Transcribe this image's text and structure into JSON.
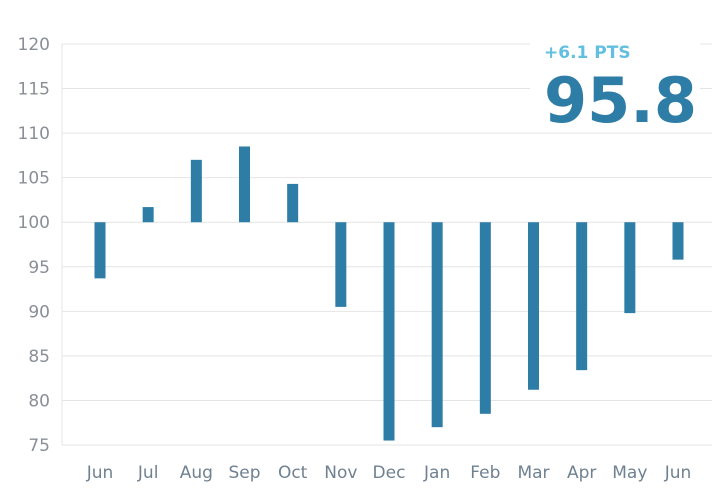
{
  "chart_data": {
    "type": "bar",
    "baseline": 100,
    "categories": [
      "Jun",
      "Jul",
      "Aug",
      "Sep",
      "Oct",
      "Nov",
      "Dec",
      "Jan",
      "Feb",
      "Mar",
      "Apr",
      "May",
      "Jun"
    ],
    "values": [
      93.7,
      101.7,
      107.0,
      108.5,
      104.3,
      90.5,
      75.5,
      77.0,
      78.5,
      81.2,
      83.4,
      89.8,
      95.8
    ],
    "ylim": [
      75,
      120
    ],
    "yticks": [
      75,
      80,
      85,
      90,
      95,
      100,
      105,
      110,
      115,
      120
    ],
    "grid": true,
    "title": "",
    "xlabel": "",
    "ylabel": "",
    "callout": {
      "change": "+6.1 PTS",
      "value": "95.8"
    },
    "colors": {
      "bar": "#2e7da6",
      "grid": "#e4e4e4",
      "change": "#62bfe0",
      "value": "#2e7da6",
      "y_tick_text": "#8a8f96",
      "x_tick_text": "#6f8191"
    }
  }
}
